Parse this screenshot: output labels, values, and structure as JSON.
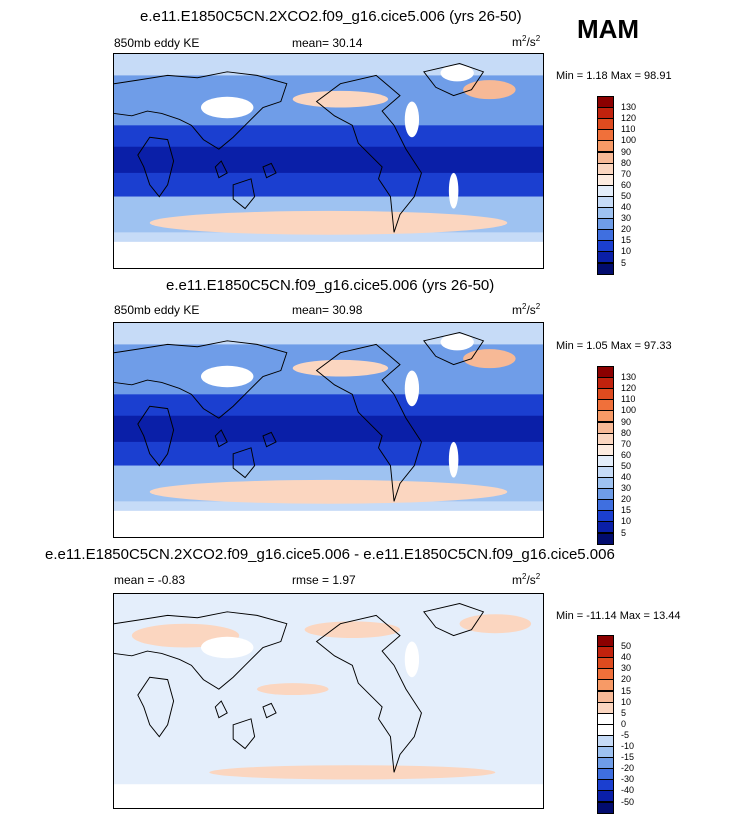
{
  "season": "MAM",
  "panels": [
    {
      "title": "e.e11.E1850C5CN.2XCO2.f09_g16.cice5.006 (yrs 26-50)",
      "left_label": "850mb eddy KE",
      "mean_label": "mean=  30.14",
      "rmse_label": "",
      "units_base": "m",
      "units_num": "2",
      "units_mid": "/s",
      "units_den": "2",
      "minmax": "Min =   1.18 Max =  98.91",
      "kind": "abs",
      "colorbar": {
        "levels": [
          "130",
          "120",
          "110",
          "100",
          "90",
          "80",
          "70",
          "60",
          "50",
          "40",
          "30",
          "20",
          "15",
          "10",
          "5"
        ],
        "colors": [
          "#8b0000",
          "#c1220d",
          "#de4b1f",
          "#f0703a",
          "#f79a66",
          "#f7b996",
          "#fbd6c0",
          "#fdece1",
          "#e4eefb",
          "#c6dbf7",
          "#9ec2f1",
          "#6f9de8",
          "#3f6fe0",
          "#1b3fd0",
          "#0a1fa8",
          "#020c6e"
        ]
      }
    },
    {
      "title": "e.e11.E1850C5CN.f09_g16.cice5.006 (yrs 26-50)",
      "left_label": "850mb eddy KE",
      "mean_label": "mean=  30.98",
      "rmse_label": "",
      "units_base": "m",
      "units_num": "2",
      "units_mid": "/s",
      "units_den": "2",
      "minmax": "Min =  1.05 Max =  97.33",
      "kind": "abs",
      "colorbar": {
        "levels": [
          "130",
          "120",
          "110",
          "100",
          "90",
          "80",
          "70",
          "60",
          "50",
          "40",
          "30",
          "20",
          "15",
          "10",
          "5"
        ],
        "colors": [
          "#8b0000",
          "#c1220d",
          "#de4b1f",
          "#f0703a",
          "#f79a66",
          "#f7b996",
          "#fbd6c0",
          "#fdece1",
          "#e4eefb",
          "#c6dbf7",
          "#9ec2f1",
          "#6f9de8",
          "#3f6fe0",
          "#1b3fd0",
          "#0a1fa8",
          "#020c6e"
        ]
      }
    },
    {
      "title": "e.e11.E1850C5CN.2XCO2.f09_g16.cice5.006 - e.e11.E1850C5CN.f09_g16.cice5.006",
      "left_label": "mean =  -0.83",
      "mean_label": "",
      "rmse_label": "rmse =   1.97",
      "units_base": "m",
      "units_num": "2",
      "units_mid": "/s",
      "units_den": "2",
      "minmax": "Min = -11.14 Max =  13.44",
      "kind": "diff",
      "colorbar": {
        "levels": [
          "50",
          "40",
          "30",
          "20",
          "15",
          "10",
          "5",
          "0",
          "-5",
          "-10",
          "-15",
          "-20",
          "-30",
          "-40",
          "-50"
        ],
        "colors": [
          "#8b0000",
          "#c1220d",
          "#de4b1f",
          "#f0703a",
          "#f79a66",
          "#f7b996",
          "#fbd6c0",
          "#ffffff",
          "#ffffff",
          "#c6dbf7",
          "#9ec2f1",
          "#6f9de8",
          "#3f6fe0",
          "#1b3fd0",
          "#0a1fa8",
          "#020c6e"
        ]
      }
    }
  ]
}
